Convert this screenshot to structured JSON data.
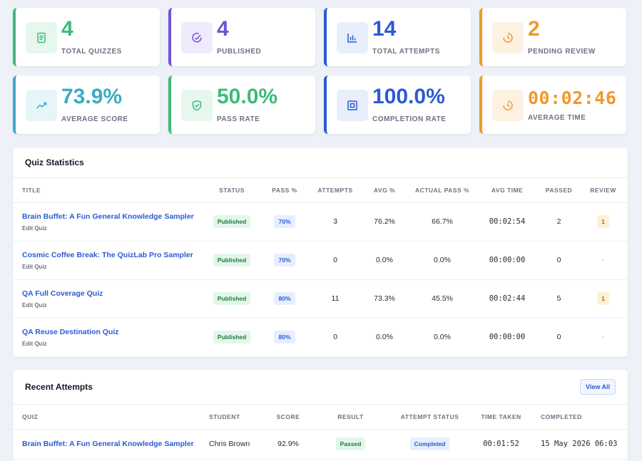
{
  "stats": [
    {
      "value": "4",
      "label": "TOTAL QUIZZES",
      "icon": "document-icon",
      "color": "#3dbb7a",
      "bg": "#e6f7ee"
    },
    {
      "value": "4",
      "label": "PUBLISHED",
      "icon": "check-circle-icon",
      "color": "#7352d6",
      "bg": "#efeafc"
    },
    {
      "value": "14",
      "label": "TOTAL ATTEMPTS",
      "icon": "bar-chart-icon",
      "color": "#2c5bd1",
      "bg": "#e8eefc"
    },
    {
      "value": "2",
      "label": "PENDING REVIEW",
      "icon": "clock-icon",
      "color": "#ef9a2b",
      "bg": "#fdf1e1"
    },
    {
      "value": "73.9%",
      "label": "AVERAGE SCORE",
      "icon": "trend-up-icon",
      "color": "#39acc4",
      "bg": "#e5f5f8"
    },
    {
      "value": "50.0%",
      "label": "PASS RATE",
      "icon": "shield-check-icon",
      "color": "#3dbb7a",
      "bg": "#e6f7ee"
    },
    {
      "value": "100.0%",
      "label": "COMPLETION RATE",
      "icon": "target-square-icon",
      "color": "#2c5bd1",
      "bg": "#e8eefc"
    },
    {
      "value": "00:02:46",
      "label": "AVERAGE TIME",
      "icon": "clock-icon",
      "color": "#ef9a2b",
      "bg": "#fdf1e1"
    }
  ],
  "quiz_stats": {
    "title": "Quiz Statistics",
    "columns": [
      "TITLE",
      "STATUS",
      "PASS %",
      "ATTEMPTS",
      "AVG %",
      "ACTUAL PASS %",
      "AVG TIME",
      "PASSED",
      "REVIEW"
    ],
    "edit_label": "Edit Quiz",
    "rows": [
      {
        "title": "Brain Buffet: A Fun General Knowledge Sampler",
        "status": "Published",
        "pass": "70%",
        "attempts": "3",
        "avg": "76.2%",
        "actual": "66.7%",
        "time": "00:02:54",
        "passed": "2",
        "review": "1"
      },
      {
        "title": "Cosmic Coffee Break: The QuizLab Pro Sampler",
        "status": "Published",
        "pass": "70%",
        "attempts": "0",
        "avg": "0.0%",
        "actual": "0.0%",
        "time": "00:00:00",
        "passed": "0",
        "review": "-"
      },
      {
        "title": "QA Full Coverage Quiz",
        "status": "Published",
        "pass": "80%",
        "attempts": "11",
        "avg": "73.3%",
        "actual": "45.5%",
        "time": "00:02:44",
        "passed": "5",
        "review": "1"
      },
      {
        "title": "QA Reuse Destination Quiz",
        "status": "Published",
        "pass": "80%",
        "attempts": "0",
        "avg": "0.0%",
        "actual": "0.0%",
        "time": "00:00:00",
        "passed": "0",
        "review": "-"
      }
    ]
  },
  "recent": {
    "title": "Recent Attempts",
    "view_all": "View All",
    "columns": [
      "QUIZ",
      "STUDENT",
      "SCORE",
      "RESULT",
      "ATTEMPT STATUS",
      "TIME TAKEN",
      "COMPLETED"
    ],
    "rows": [
      {
        "quiz": "Brain Buffet: A Fun General Knowledge Sampler",
        "student": "Chris Brown",
        "score": "92.9%",
        "result": "Passed",
        "status": "Completed",
        "time": "00:01:52",
        "completed": "15 May 2026 06:03"
      }
    ]
  }
}
